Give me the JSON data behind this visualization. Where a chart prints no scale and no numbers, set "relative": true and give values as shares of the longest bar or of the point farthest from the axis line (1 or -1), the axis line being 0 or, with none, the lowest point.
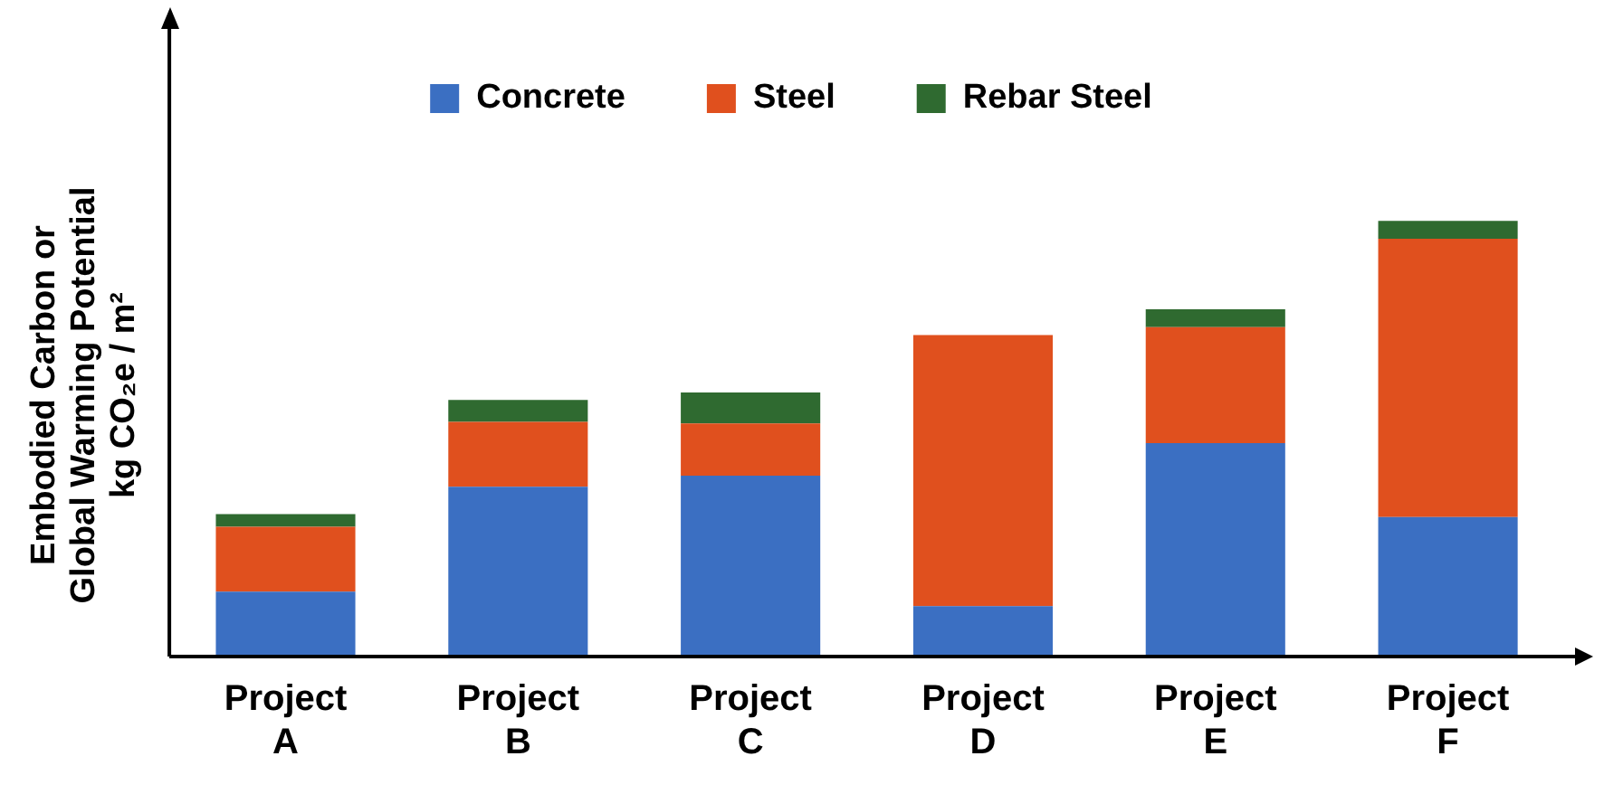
{
  "chart_data": {
    "type": "bar",
    "stacked": true,
    "relative": true,
    "legend": "top",
    "grid": false,
    "ylabel": "Embodied Carbon or\nGlobal Warming Potential\nkg CO₂e / m²",
    "categories": [
      "Project A",
      "Project B",
      "Project C",
      "Project D",
      "Project E",
      "Project F"
    ],
    "series": [
      {
        "name": "Concrete",
        "color": "#3b6fc2",
        "values": [
          0.149,
          0.39,
          0.415,
          0.116,
          0.49,
          0.32
        ]
      },
      {
        "name": "Steel",
        "color": "#e0501e",
        "values": [
          0.149,
          0.149,
          0.12,
          0.622,
          0.266,
          0.639
        ]
      },
      {
        "name": "Rebar Steel",
        "color": "#2f6a30",
        "values": [
          0.029,
          0.05,
          0.071,
          0,
          0.041,
          0.041
        ]
      }
    ]
  }
}
